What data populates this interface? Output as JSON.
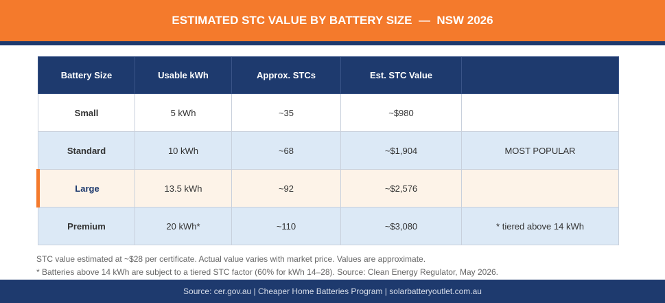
{
  "header": {
    "title": "ESTIMATED STC VALUE BY BATTERY SIZE  —  NSW 2026"
  },
  "table": {
    "columns": [
      "Battery Size",
      "Usable kWh",
      "Approx. STCs",
      "Est. STC Value"
    ],
    "rows": [
      [
        "Small",
        "5 kWh",
        "~35",
        "~$980"
      ],
      [
        "Standard",
        "10 kWh",
        "~68",
        "~$1,904",
        "MOST POPULAR"
      ],
      [
        "Large",
        "13.5 kWh",
        "~92",
        "~$2,576"
      ],
      [
        "Premium",
        "20 kWh*",
        "~110",
        "~$3,080",
        "* tiered above 14 kWh"
      ]
    ]
  },
  "notes": [
    "STC value estimated at ~$28 per certificate. Actual value varies with market price. Values are approximate.",
    "* Batteries above 14 kWh are subject to a tiered STC factor (60% for kWh 14–28). Source: Clean Energy Regulator, May 2026."
  ],
  "footer": {
    "text": "Source: cer.gov.au | Cheaper Home Batteries Program | solarbatteryoutlet.com.au"
  }
}
